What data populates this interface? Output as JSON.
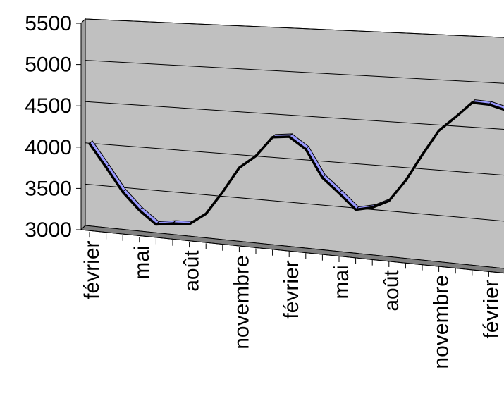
{
  "chart_data": {
    "type": "line",
    "title": "",
    "xlabel": "",
    "ylabel": "",
    "ylim": [
      3000,
      5500
    ],
    "y_ticks": [
      3000,
      3500,
      4000,
      4500,
      5000,
      5500
    ],
    "x_tick_labels_shown": [
      "février",
      "mai",
      "août",
      "novembre",
      "février",
      "mai",
      "août",
      "novembre",
      "février"
    ],
    "perspective": "3d",
    "grid": true,
    "legend": "none",
    "colors": {
      "wall": "#c0c0c0",
      "floor": "#808080",
      "line": "#000000",
      "ribbon_face": "#9999ff"
    },
    "series": [
      {
        "values": [
          4050,
          3780,
          3500,
          3300,
          3150,
          3180,
          3190,
          3330,
          3600,
          3900,
          4050,
          4280,
          4300,
          4170,
          3860,
          3700,
          3530,
          3570,
          3660,
          3900,
          4200,
          4480,
          4640,
          4810,
          4800,
          4750
        ]
      }
    ]
  }
}
